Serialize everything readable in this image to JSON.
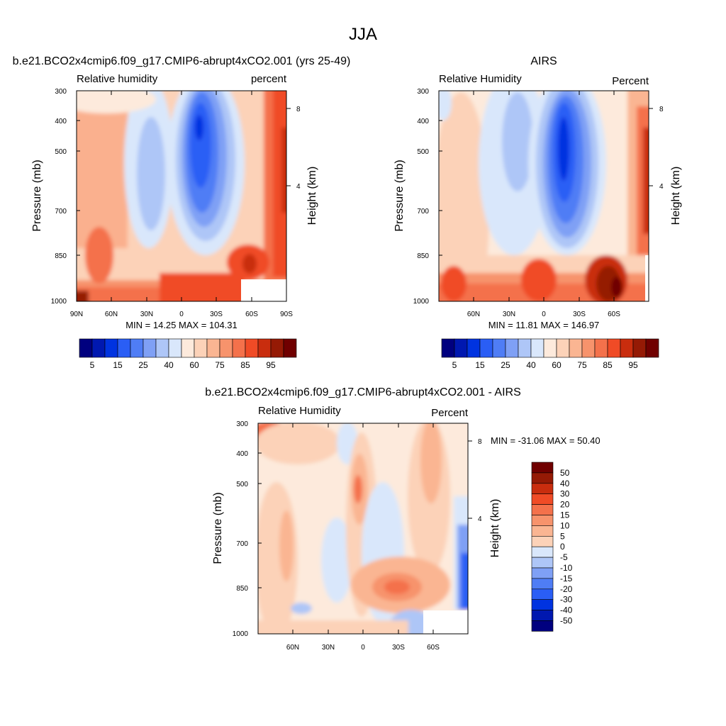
{
  "page_title": "JJA",
  "colors": {
    "blue_to_red_palette": [
      "#00007f",
      "#0018b0",
      "#0033e0",
      "#2a5ef5",
      "#4f7df5",
      "#7fa0f5",
      "#aec6f7",
      "#d9e7fb",
      "#fdeadc",
      "#fcd2b8",
      "#fab592",
      "#f7936c",
      "#f4714b",
      "#f04b26",
      "#c92d0e",
      "#951a05",
      "#700000"
    ]
  },
  "chart_data": [
    {
      "id": "model",
      "type": "heatmap",
      "title": "b.e21.BCO2x4cmip6.f09_g17.CMIP6-abrupt4xCO2.001 (yrs 25-49)",
      "left_string": "Relative humidity",
      "right_string": "percent",
      "ylabel": "Pressure (mb)",
      "y2label": "Height (km)",
      "ylim": [
        1000,
        300
      ],
      "y_ticks": [
        "300",
        "400",
        "500",
        "700",
        "850",
        "1000"
      ],
      "y2_ticks": [
        "8",
        "4"
      ],
      "x_ticks": [
        "90N",
        "60N",
        "30N",
        "0",
        "30S",
        "60S",
        "90S"
      ],
      "stats": "MIN =  14.25  MAX = 104.31",
      "min": 14.25,
      "max": 104.31,
      "levels": [
        5,
        10,
        15,
        20,
        25,
        30,
        40,
        50,
        60,
        65,
        70,
        75,
        80,
        85,
        90,
        95
      ],
      "colorbar_labels": [
        "5",
        "15",
        "25",
        "40",
        "60",
        "75",
        "85",
        "95"
      ]
    },
    {
      "id": "obs",
      "type": "heatmap",
      "title": "AIRS",
      "left_string": "Relative Humidity",
      "right_string": "Percent",
      "ylabel": "Pressure (mb)",
      "y2label": "Height (km)",
      "ylim": [
        1000,
        300
      ],
      "y_ticks": [
        "300",
        "400",
        "500",
        "700",
        "850",
        "1000"
      ],
      "y2_ticks": [
        "8",
        "4"
      ],
      "x_ticks": [
        "60N",
        "30N",
        "0",
        "30S",
        "60S"
      ],
      "stats": "MIN =  11.81  MAX = 146.97",
      "min": 11.81,
      "max": 146.97,
      "levels": [
        5,
        10,
        15,
        20,
        25,
        30,
        40,
        50,
        60,
        65,
        70,
        75,
        80,
        85,
        90,
        95
      ],
      "colorbar_labels": [
        "5",
        "15",
        "25",
        "40",
        "60",
        "75",
        "85",
        "95"
      ]
    },
    {
      "id": "diff",
      "type": "heatmap",
      "title": "b.e21.BCO2x4cmip6.f09_g17.CMIP6-abrupt4xCO2.001 - AIRS",
      "left_string": "Relative Humidity",
      "right_string": "Percent",
      "ylabel": "Pressure (mb)",
      "y2label": "Height (km)",
      "ylim": [
        1000,
        300
      ],
      "y_ticks": [
        "300",
        "400",
        "500",
        "700",
        "850",
        "1000"
      ],
      "y2_ticks": [
        "8",
        "4"
      ],
      "x_ticks": [
        "60N",
        "30N",
        "0",
        "30S",
        "60S"
      ],
      "stats": "MIN = -31.06  MAX =  50.40",
      "min": -31.06,
      "max": 50.4,
      "levels": [
        -50,
        -40,
        -30,
        -20,
        -15,
        -10,
        -5,
        0,
        5,
        10,
        15,
        20,
        30,
        40,
        50
      ],
      "colorbar_labels": [
        "50",
        "40",
        "30",
        "20",
        "15",
        "10",
        "5",
        "0",
        "-5",
        "-10",
        "-15",
        "-20",
        "-30",
        "-40",
        "-50"
      ]
    }
  ]
}
